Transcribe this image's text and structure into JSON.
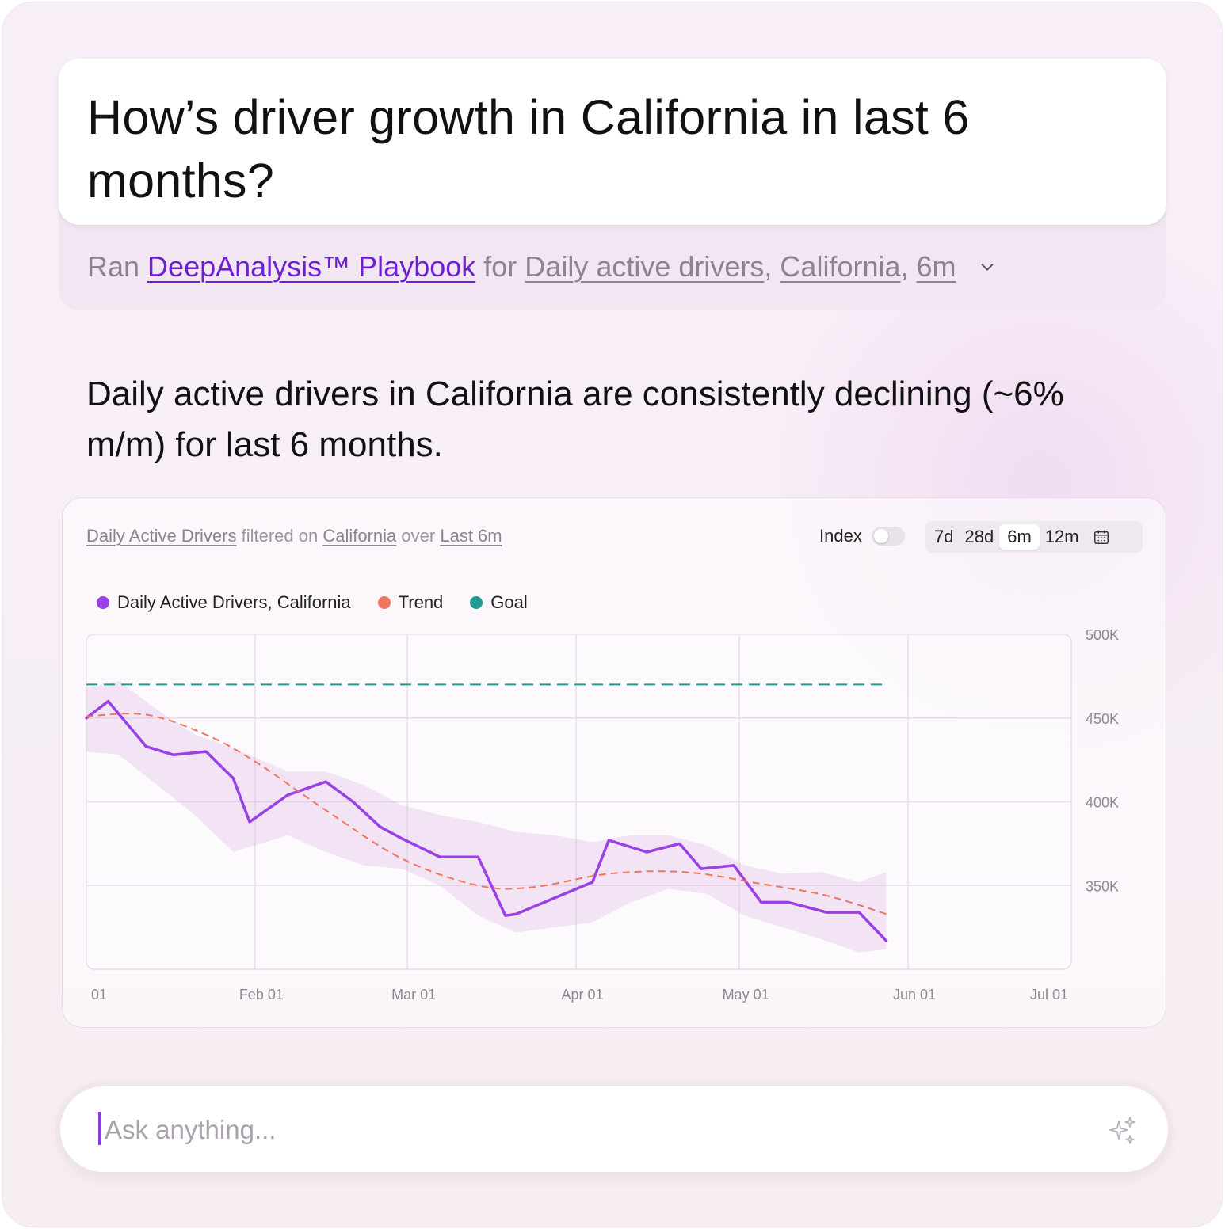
{
  "question": "How’s driver growth in California in last 6 months?",
  "ran": {
    "prefix": "Ran",
    "playbook": "DeepAnalysis™ Playbook",
    "for": "for",
    "metric": "Daily active drivers",
    "region": "California",
    "period": "6m",
    "comma": ","
  },
  "summary": "Daily active drivers in California are consistently declining (~6% m/m) for last 6 months.",
  "chart_header": {
    "metric": "Daily Active Drivers",
    "filtered_on": "filtered on",
    "region": "California",
    "over": "over",
    "period": "Last 6m",
    "index_label": "Index",
    "ranges": [
      "7d",
      "28d",
      "6m",
      "12m"
    ],
    "active_range": "6m"
  },
  "legend": [
    {
      "label": "Daily Active Drivers, California",
      "color": "#9b3fe6"
    },
    {
      "label": "Trend",
      "color": "#f2765d"
    },
    {
      "label": "Goal",
      "color": "#1f9a92"
    }
  ],
  "chart_data": {
    "type": "line",
    "x_ticks": [
      "01",
      "Feb 01",
      "Mar 01",
      "Apr 01",
      "May 01",
      "Jun 01",
      "Jul 01"
    ],
    "y_ticks": [
      "500K",
      "450K",
      "400K",
      "350K"
    ],
    "ylim": [
      300000,
      500000
    ],
    "grid": true,
    "legend_position": "top-left",
    "series": [
      {
        "name": "Daily Active Drivers, California",
        "color": "#9b3fe6",
        "x": [
          "Jan 01",
          "Jan 05",
          "Jan 12",
          "Jan 17",
          "Jan 23",
          "Jan 28",
          "Jan 31",
          "Feb 07",
          "Feb 14",
          "Feb 19",
          "Feb 24",
          "Feb 28",
          "Mar 07",
          "Mar 14",
          "Mar 19",
          "Mar 21",
          "Apr 04",
          "Apr 07",
          "Apr 14",
          "Apr 20",
          "Apr 24",
          "Apr 30",
          "May 05",
          "May 10",
          "May 17",
          "May 23",
          "May 28"
        ],
        "y": [
          450000,
          460000,
          433000,
          428000,
          430000,
          414000,
          388000,
          404000,
          412000,
          400000,
          385000,
          378000,
          367000,
          367000,
          332000,
          333000,
          352000,
          377000,
          370000,
          375000,
          360000,
          362000,
          340000,
          340000,
          334000,
          334000,
          317000
        ]
      },
      {
        "name": "Trend",
        "color": "#f2765d",
        "style": "dashed",
        "x": [
          "Jan 01",
          "Jan 12",
          "Jan 23",
          "Feb 01",
          "Feb 14",
          "Feb 28",
          "Mar 14",
          "Mar 24",
          "Apr 07",
          "Apr 21",
          "May 05",
          "May 17",
          "May 28"
        ],
        "y": [
          451000,
          452000,
          440000,
          424000,
          395000,
          366000,
          350000,
          349000,
          357000,
          358000,
          351000,
          344000,
          333000
        ]
      },
      {
        "name": "Goal",
        "color": "#1f9a92",
        "style": "dashed",
        "x": [
          "Jan 01",
          "May 28"
        ],
        "y": [
          470000,
          470000
        ]
      }
    ],
    "band": {
      "x": [
        "Jan 01",
        "Jan 07",
        "Jan 14",
        "Jan 21",
        "Jan 28",
        "Feb 07",
        "Feb 14",
        "Feb 21",
        "Feb 28",
        "Mar 07",
        "Mar 14",
        "Mar 21",
        "Mar 28",
        "Apr 04",
        "Apr 11",
        "Apr 18",
        "Apr 25",
        "May 02",
        "May 09",
        "May 16",
        "May 23",
        "May 28"
      ],
      "upper": [
        468000,
        472000,
        455000,
        440000,
        432000,
        418000,
        418000,
        410000,
        398000,
        392000,
        388000,
        382000,
        380000,
        376000,
        380000,
        380000,
        374000,
        362000,
        357000,
        358000,
        352000,
        358000
      ],
      "lower": [
        430000,
        428000,
        410000,
        392000,
        370000,
        380000,
        370000,
        362000,
        360000,
        350000,
        332000,
        322000,
        325000,
        328000,
        340000,
        348000,
        345000,
        332000,
        325000,
        318000,
        310000,
        312000
      ]
    }
  },
  "ask": {
    "placeholder": "Ask anything..."
  }
}
